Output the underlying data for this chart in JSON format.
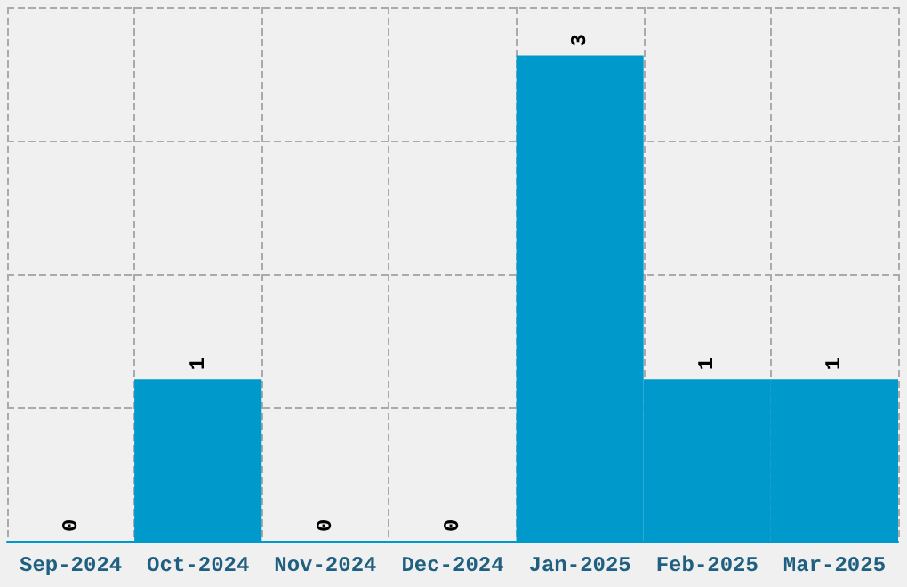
{
  "chart_data": {
    "type": "bar",
    "categories": [
      "Sep-2024",
      "Oct-2024",
      "Nov-2024",
      "Dec-2024",
      "Jan-2025",
      "Feb-2025",
      "Mar-2025"
    ],
    "values": [
      0,
      1,
      0,
      0,
      3,
      1,
      1
    ],
    "color": "#0099cc",
    "data_labels": true,
    "grid": true,
    "ylim": [
      0,
      3.3
    ],
    "yticks": [
      {
        "value": 0,
        "label": null
      },
      {
        "value": 0.825,
        "label": null
      },
      {
        "value": 1.65,
        "label": null
      },
      {
        "value": 2.475,
        "label": null
      },
      {
        "value": 3.3,
        "label": null
      }
    ],
    "tick_labels": "x"
  }
}
